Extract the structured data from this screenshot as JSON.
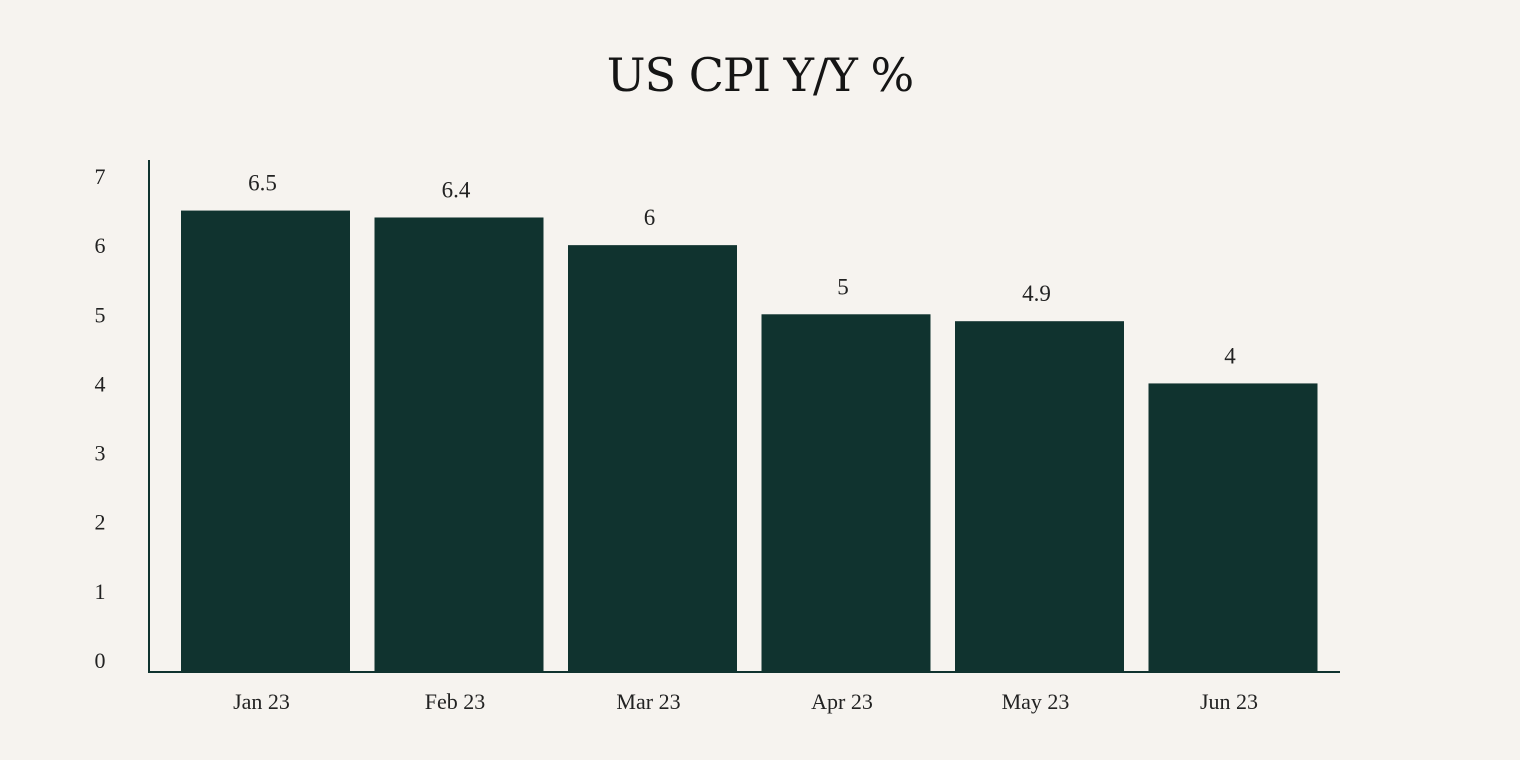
{
  "chart_data": {
    "type": "bar",
    "title": "US CPI Y/Y %",
    "categories": [
      "Jan 23",
      "Feb 23",
      "Mar 23",
      "Apr 23",
      "May 23",
      "Jun 23"
    ],
    "values": [
      6.5,
      6.4,
      6,
      5,
      4.9,
      4
    ],
    "data_labels": [
      "6.5",
      "6.4",
      "6",
      "5",
      "4.9",
      "4"
    ],
    "yticks": [
      "0",
      "1",
      "2",
      "3",
      "4",
      "5",
      "6",
      "7"
    ],
    "ylim": [
      0,
      7
    ],
    "xlabel": "",
    "ylabel": "",
    "grid": false,
    "bar_color": "#10332f",
    "axis_color": "#10332f",
    "background": "#f6f3ef"
  }
}
